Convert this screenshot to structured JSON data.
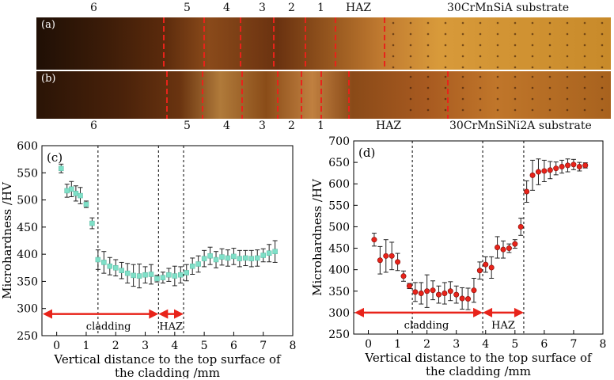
{
  "figure": {
    "micrograph_a": {
      "panel_label": "(a)",
      "zone_labels": [
        "6",
        "5",
        "4",
        "3",
        "2",
        "1",
        "HAZ"
      ],
      "substrate_label": "30CrMnSiA substrate",
      "line_color": "#e8231a"
    },
    "micrograph_b": {
      "panel_label": "(b)",
      "zone_labels": [
        "6",
        "5",
        "4",
        "3",
        "2",
        "1",
        "HAZ"
      ],
      "substrate_label": "30CrMnSiNi2A  substrate",
      "line_color": "#e8231a"
    }
  },
  "chart_data": [
    {
      "type": "scatter",
      "panel_label": "(c)",
      "xlabel": "Vertical distance to the top surface of the cladding /mm",
      "ylabel": "Microhardness /HV",
      "xlim": [
        -0.5,
        8
      ],
      "ylim": [
        250,
        600
      ],
      "xticks": [
        0,
        1,
        2,
        3,
        4,
        5,
        6,
        7,
        8
      ],
      "yticks": [
        250,
        300,
        350,
        400,
        450,
        500,
        550,
        600
      ],
      "marker_color": "#7fe0c8",
      "x": [
        0.15,
        0.35,
        0.5,
        0.65,
        0.8,
        1.0,
        1.2,
        1.4,
        1.6,
        1.8,
        2.0,
        2.2,
        2.4,
        2.6,
        2.8,
        3.0,
        3.2,
        3.4,
        3.6,
        3.8,
        4.0,
        4.2,
        4.4,
        4.6,
        4.8,
        5.0,
        5.2,
        5.4,
        5.6,
        5.8,
        6.0,
        6.2,
        6.4,
        6.6,
        6.8,
        7.0,
        7.2,
        7.4
      ],
      "y": [
        558,
        517,
        520,
        512,
        508,
        492,
        457,
        390,
        385,
        378,
        375,
        370,
        365,
        361,
        360,
        362,
        363,
        355,
        357,
        362,
        360,
        362,
        366,
        378,
        382,
        392,
        397,
        390,
        395,
        393,
        396,
        392,
        393,
        392,
        393,
        398,
        402,
        405
      ],
      "yerr": [
        8,
        12,
        14,
        14,
        15,
        6,
        10,
        18,
        20,
        16,
        15,
        15,
        18,
        20,
        22,
        15,
        18,
        6,
        10,
        12,
        18,
        15,
        15,
        15,
        15,
        15,
        16,
        15,
        15,
        15,
        15,
        15,
        14,
        15,
        15,
        12,
        16,
        20
      ],
      "boundaries": [
        1.4,
        3.45,
        4.3
      ],
      "regions": [
        {
          "label": "cladding",
          "from": -0.5,
          "to": 3.45
        },
        {
          "label": "HAZ",
          "from": 3.45,
          "to": 4.3
        }
      ],
      "arrow_y": 290,
      "arrow_color": "#e8231a"
    },
    {
      "type": "scatter",
      "panel_label": "(d)",
      "xlabel": "Vertical distance to the top surface of the cladding /mm",
      "ylabel": "Microhardness /HV",
      "xlim": [
        -0.5,
        8
      ],
      "ylim": [
        250,
        700
      ],
      "xticks": [
        0,
        1,
        2,
        3,
        4,
        5,
        6,
        7,
        8
      ],
      "yticks": [
        250,
        300,
        350,
        400,
        450,
        500,
        550,
        600,
        650,
        700
      ],
      "marker_color": "#e8231a",
      "x": [
        0.2,
        0.4,
        0.6,
        0.8,
        1.0,
        1.2,
        1.4,
        1.6,
        1.8,
        2.0,
        2.2,
        2.4,
        2.6,
        2.8,
        3.0,
        3.2,
        3.4,
        3.6,
        3.8,
        4.0,
        4.2,
        4.4,
        4.6,
        4.8,
        5.0,
        5.2,
        5.4,
        5.6,
        5.8,
        6.0,
        6.2,
        6.4,
        6.6,
        6.8,
        7.0,
        7.2,
        7.4
      ],
      "y": [
        470,
        422,
        432,
        432,
        418,
        385,
        362,
        348,
        345,
        350,
        352,
        342,
        345,
        350,
        342,
        333,
        332,
        352,
        398,
        412,
        405,
        452,
        447,
        450,
        460,
        500,
        582,
        620,
        628,
        630,
        632,
        636,
        640,
        643,
        645,
        640,
        643
      ],
      "yerr": [
        15,
        32,
        38,
        32,
        20,
        12,
        6,
        22,
        25,
        38,
        22,
        20,
        25,
        22,
        20,
        25,
        25,
        28,
        20,
        18,
        25,
        25,
        20,
        10,
        10,
        20,
        25,
        35,
        30,
        25,
        20,
        15,
        15,
        15,
        12,
        10,
        6
      ],
      "boundaries": [
        1.5,
        3.9,
        5.3
      ],
      "regions": [
        {
          "label": "cladding",
          "from": -0.5,
          "to": 3.9
        },
        {
          "label": "HAZ",
          "from": 3.9,
          "to": 5.3
        }
      ],
      "arrow_y": 300,
      "arrow_color": "#e8231a"
    }
  ]
}
